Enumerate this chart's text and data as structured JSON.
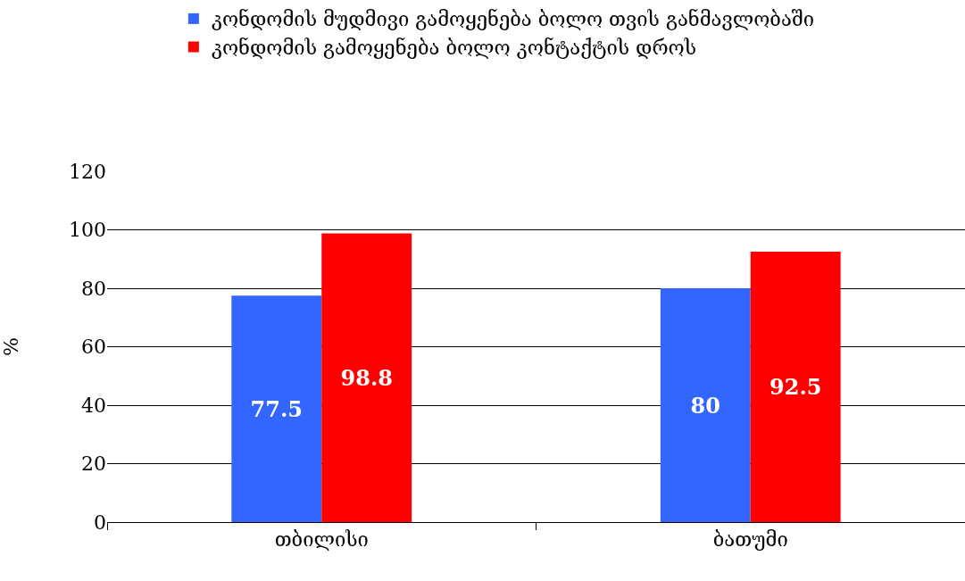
{
  "chart_data": {
    "type": "bar",
    "ylabel": "%",
    "categories": [
      "თბილისი",
      "ბათუმი"
    ],
    "series": [
      {
        "name": "კონდომის მუდმივი გამოყენება ბოლო თვის განმავლობაში",
        "color": "#3366ff",
        "values": [
          77.5,
          80
        ]
      },
      {
        "name": "კონდომის გამოყენება ბოლო კონტაქტის დროს",
        "color": "#ff0000",
        "values": [
          98.8,
          92.5
        ]
      }
    ],
    "ylim": [
      0,
      120
    ],
    "yticks": [
      0,
      20,
      40,
      60,
      80,
      100,
      120
    ],
    "grid": "y",
    "legend": "top",
    "data_labels": true
  }
}
